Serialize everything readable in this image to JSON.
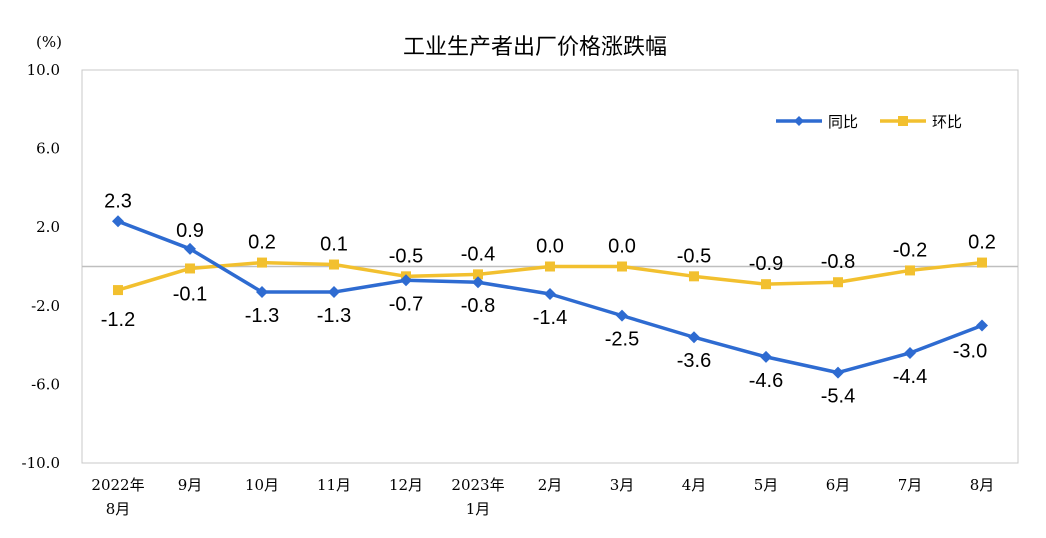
{
  "chart_data": {
    "type": "line",
    "title": "工业生产者出厂价格涨跌幅",
    "unit_label": "(%)",
    "ylim": [
      -10.0,
      10.0
    ],
    "y_ticks": [
      "10.0",
      "6.0",
      "2.0",
      "-2.0",
      "-6.0",
      "-10.0"
    ],
    "y_tick_values": [
      10,
      6,
      2,
      -2,
      -6,
      -10
    ],
    "categories": [
      {
        "line1": "2022年",
        "line2": "8月"
      },
      {
        "line1": "9月",
        "line2": ""
      },
      {
        "line1": "10月",
        "line2": ""
      },
      {
        "line1": "11月",
        "line2": ""
      },
      {
        "line1": "12月",
        "line2": ""
      },
      {
        "line1": "2023年",
        "line2": "1月"
      },
      {
        "line1": "2月",
        "line2": ""
      },
      {
        "line1": "3月",
        "line2": ""
      },
      {
        "line1": "4月",
        "line2": ""
      },
      {
        "line1": "5月",
        "line2": ""
      },
      {
        "line1": "6月",
        "line2": ""
      },
      {
        "line1": "7月",
        "line2": ""
      },
      {
        "line1": "8月",
        "line2": ""
      }
    ],
    "series": [
      {
        "name": "同比",
        "color": "#2e6bd1",
        "marker": "diamond",
        "values": [
          2.3,
          0.9,
          -1.3,
          -1.3,
          -0.7,
          -0.8,
          -1.4,
          -2.5,
          -3.6,
          -4.6,
          -5.4,
          -4.4,
          -3.0
        ],
        "labels": [
          "2.3",
          "0.9",
          "-1.3",
          "-1.3",
          "-0.7",
          "-0.8",
          "-1.4",
          "-2.5",
          "-3.6",
          "-4.6",
          "-5.4",
          "-4.4",
          "-3.0"
        ]
      },
      {
        "name": "环比",
        "color": "#f2c02f",
        "marker": "square",
        "values": [
          -1.2,
          -0.1,
          0.2,
          0.1,
          -0.5,
          -0.4,
          0.0,
          0.0,
          -0.5,
          -0.9,
          -0.8,
          -0.2,
          0.2
        ],
        "labels": [
          "-1.2",
          "-0.1",
          "0.2",
          "0.1",
          "-0.5",
          "-0.4",
          "0.0",
          "0.0",
          "-0.5",
          "-0.9",
          "-0.8",
          "-0.2",
          "0.2"
        ]
      }
    ],
    "grid": false,
    "legend_position": "top-right"
  }
}
